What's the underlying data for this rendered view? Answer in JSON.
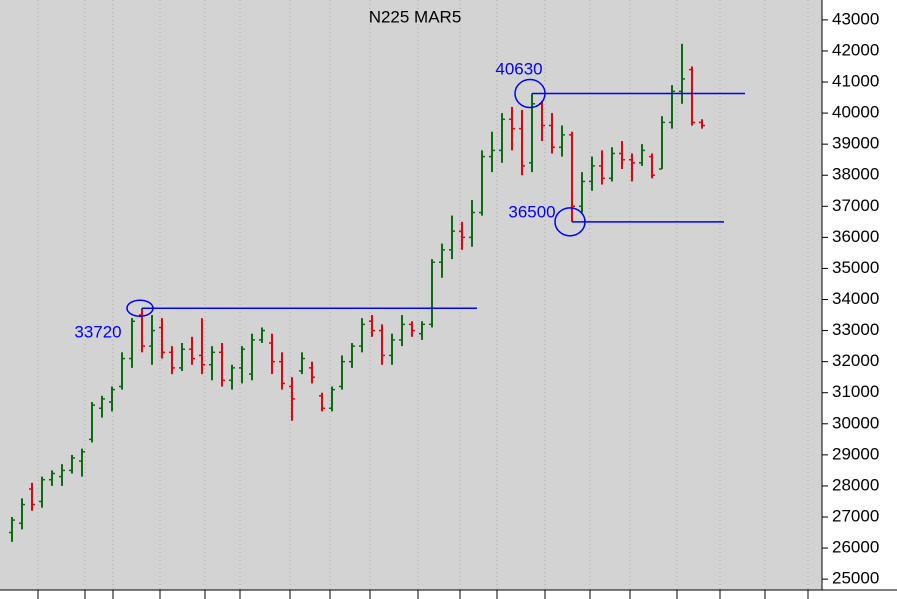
{
  "chart_data": {
    "type": "ohlc",
    "title": "N225 MAR5",
    "open": [
      26500,
      26800,
      27900,
      27500,
      28200,
      28300,
      28500,
      28800,
      29500,
      30500,
      30700,
      31200,
      32100,
      33500,
      32500,
      33100,
      32300,
      31800,
      32400,
      32200,
      31900,
      32300,
      31400,
      31800,
      31600,
      32700,
      32600,
      32000,
      31200,
      31700,
      31800,
      30900,
      30500,
      31200,
      32000,
      32500,
      33300,
      33000,
      32200,
      32700,
      33200,
      32900,
      33200,
      35200,
      35600,
      36200,
      36000,
      36800,
      38600,
      38800,
      39800,
      39500,
      38400,
      40300,
      39600,
      38900,
      39300,
      37000,
      37800,
      38300,
      37900,
      38700,
      38500,
      38400,
      38600,
      38200,
      39700,
      40700,
      41400,
      39700
    ],
    "high": [
      27000,
      27600,
      28100,
      28300,
      28500,
      28700,
      29000,
      29200,
      30700,
      30900,
      31200,
      32300,
      33400,
      33720,
      33500,
      33400,
      32500,
      32600,
      32800,
      33400,
      32500,
      32600,
      31900,
      32500,
      32900,
      33100,
      32900,
      32300,
      31500,
      32300,
      32000,
      31000,
      31200,
      32200,
      32600,
      33400,
      33500,
      33200,
      32900,
      33500,
      33300,
      33300,
      35300,
      35800,
      36700,
      36500,
      37200,
      38800,
      39400,
      40000,
      40200,
      40100,
      40630,
      40400,
      40000,
      39600,
      39400,
      38100,
      38600,
      38800,
      38900,
      39100,
      38700,
      39000,
      38700,
      39900,
      40900,
      42230,
      41500,
      39800
    ],
    "low": [
      26200,
      26600,
      27200,
      27300,
      28000,
      28000,
      28400,
      28300,
      29400,
      30200,
      30400,
      31100,
      31800,
      32300,
      31900,
      32100,
      31600,
      31700,
      31900,
      31600,
      31400,
      31200,
      31100,
      31300,
      31400,
      32600,
      31600,
      31100,
      30100,
      31600,
      31300,
      30400,
      30400,
      31100,
      31800,
      32300,
      32800,
      31900,
      31900,
      32500,
      32800,
      32700,
      33100,
      34700,
      35300,
      35600,
      35700,
      36700,
      38100,
      38400,
      38800,
      38000,
      38100,
      39100,
      38700,
      38600,
      36500,
      36800,
      37500,
      37700,
      37800,
      38200,
      37800,
      38300,
      37900,
      38200,
      39500,
      40300,
      39600,
      39500
    ],
    "close": [
      26900,
      27400,
      27400,
      28200,
      28400,
      28500,
      28900,
      29100,
      30600,
      30800,
      31100,
      32100,
      33300,
      32500,
      33000,
      32300,
      31800,
      32400,
      32100,
      31900,
      32300,
      31400,
      31800,
      32400,
      32700,
      33000,
      32000,
      31300,
      30800,
      32100,
      31500,
      30500,
      31100,
      32000,
      32500,
      33200,
      33000,
      32200,
      32700,
      33200,
      33000,
      33200,
      35200,
      35600,
      36200,
      36000,
      36800,
      38600,
      38800,
      39800,
      39500,
      38300,
      40300,
      39600,
      38900,
      39300,
      37000,
      37800,
      38300,
      37900,
      38700,
      38500,
      38400,
      38800,
      38000,
      39700,
      40700,
      41100,
      39700,
      39600
    ],
    "up_color": "#0b6b12",
    "down_color": "#e8000b",
    "ylim": [
      24650,
      43640
    ],
    "yticks": [
      25000,
      26000,
      27000,
      28000,
      29000,
      30000,
      31000,
      32000,
      33000,
      34000,
      35000,
      36000,
      37000,
      38000,
      39000,
      40000,
      41000,
      42000,
      43000
    ],
    "annotations": [
      {
        "value": 33720,
        "start": 13,
        "end": 46.5,
        "color": "#0000ff"
      },
      {
        "value": 40630,
        "start": 52,
        "end": 73.3,
        "color": "#0000ff"
      },
      {
        "value": 36500,
        "start": 56,
        "end": 71.2,
        "color": "#0000ff"
      }
    ]
  }
}
